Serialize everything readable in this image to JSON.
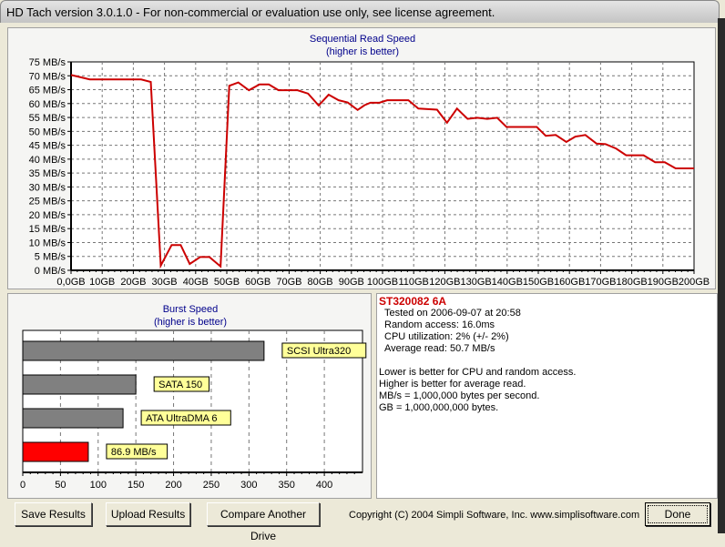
{
  "window": {
    "title": "HD Tach version 3.0.1.0  - For non-commercial or evaluation use only, see license agreement."
  },
  "chart_data": [
    {
      "type": "line",
      "title": "Sequential Read Speed",
      "subtitle": "(higher is better)",
      "xlabel": "",
      "ylabel": "",
      "xlim": [
        0,
        200
      ],
      "ylim": [
        0,
        75
      ],
      "grid": true,
      "xticks": [
        "0,0GB",
        "10GB",
        "20GB",
        "30GB",
        "40GB",
        "50GB",
        "60GB",
        "70GB",
        "80GB",
        "90GB",
        "100GB",
        "110GB",
        "120GB",
        "130GB",
        "140GB",
        "150GB",
        "160GB",
        "170GB",
        "180GB",
        "190GB",
        "200GB"
      ],
      "yticks": [
        "0 MB/s",
        "5 MB/s",
        "10 MB/s",
        "15 MB/s",
        "20 MB/s",
        "25 MB/s",
        "30 MB/s",
        "35 MB/s",
        "40 MB/s",
        "45 MB/s",
        "50 MB/s",
        "55 MB/s",
        "60 MB/s",
        "65 MB/s",
        "70 MB/s",
        "75 MB/s"
      ],
      "series": [
        {
          "color": "#cc0000",
          "x": [
            0,
            6,
            22.5,
            25.6,
            28.8,
            32.3,
            35.2,
            38.1,
            41.5,
            44.4,
            48,
            50.8,
            53.7,
            57.1,
            60.5,
            63.5,
            66.6,
            72.7,
            76.1,
            79.5,
            82.7,
            85.9,
            88.8,
            92,
            94.2,
            96.1,
            99,
            101.5,
            108.3,
            111.5,
            117.5,
            120.7,
            123.9,
            127.3,
            130.4,
            133.6,
            136.8,
            139.8,
            149.5,
            152.4,
            155.6,
            159,
            161.9,
            165.1,
            168.7,
            171.6,
            175,
            178.2,
            183.8,
            187.5,
            190.6,
            194.1,
            200
          ],
          "y": [
            70.3,
            68.7,
            68.7,
            67.8,
            1.7,
            9.1,
            9.1,
            2.3,
            4.8,
            4.8,
            1.4,
            66.4,
            67.6,
            64.8,
            66.9,
            66.9,
            64.8,
            64.8,
            63.6,
            59.3,
            63.2,
            61.2,
            60.4,
            57.7,
            59.4,
            60.3,
            60.3,
            61.2,
            61.2,
            58.2,
            57.8,
            53.1,
            58.2,
            54.5,
            54.9,
            54.5,
            54.9,
            51.6,
            51.6,
            48.4,
            48.7,
            46.2,
            48.1,
            48.7,
            45.6,
            45.4,
            43.8,
            41.4,
            41.4,
            38.9,
            38.9,
            36.7,
            36.7
          ]
        }
      ]
    },
    {
      "type": "bar",
      "orientation": "horizontal",
      "title": "Burst Speed",
      "subtitle": "(higher is better)",
      "xlim": [
        0,
        440
      ],
      "grid": true,
      "xticks": [
        "0",
        "50",
        "100",
        "150",
        "200",
        "250",
        "300",
        "350",
        "400"
      ],
      "categories": [
        "SCSI Ultra320",
        "SATA 150",
        "ATA UltraDMA 6",
        "86.9 MB/s"
      ],
      "values": [
        320,
        150,
        133,
        86.9
      ],
      "colors": [
        "#808080",
        "#808080",
        "#808080",
        "#ff0000"
      ],
      "label_bg": "#ffff99"
    }
  ],
  "info": {
    "drive": "ST320082 6A",
    "tested": "Tested on 2006-09-07 at 20:58",
    "random": "Random access: 16.0ms",
    "cpu": "CPU utilization: 2% (+/- 2%)",
    "avg": "Average read: 50.7 MB/s",
    "notes": [
      "Lower is better for CPU and random access.",
      "Higher is better for average read.",
      "MB/s = 1,000,000 bytes per second.",
      "GB = 1,000,000,000 bytes."
    ]
  },
  "buttons": {
    "save": "Save Results",
    "upload": "Upload Results",
    "compare": "Compare Another Drive",
    "done": "Done"
  },
  "copyright": "Copyright (C) 2004 Simpli Software, Inc. www.simplisoftware.com"
}
